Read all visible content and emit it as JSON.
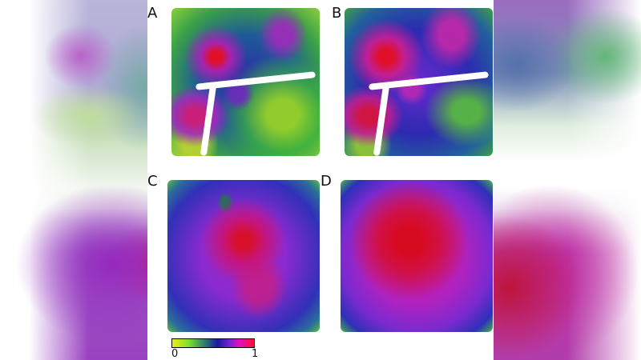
{
  "figure": {
    "panels": [
      {
        "label": "A",
        "description": "network colored by normalized centrality, mostly green/blue with red hotspots"
      },
      {
        "label": "B",
        "description": "network colored by normalized centrality, more purple/magenta with red hotspots"
      },
      {
        "label": "C",
        "description": "grid-like network, purple/blue with red center"
      },
      {
        "label": "D",
        "description": "grid-like network, magenta with strong red center"
      }
    ],
    "colorbar": {
      "min_label": "0",
      "max_label": "1",
      "colors": [
        "#f0ec10",
        "#7fe030",
        "#2a7a70",
        "#1a1aa0",
        "#7a20d0",
        "#e010c0",
        "#ff1030"
      ]
    }
  },
  "chart_data": {
    "type": "heatmap",
    "title": "",
    "panels": [
      "A",
      "B",
      "C",
      "D"
    ],
    "colorbar": {
      "range": [
        0,
        1
      ],
      "tick_labels": [
        "0",
        "1"
      ],
      "colormap": [
        "yellow",
        "green",
        "blue",
        "purple",
        "magenta",
        "red"
      ]
    },
    "xlabel": "",
    "ylabel": ""
  }
}
